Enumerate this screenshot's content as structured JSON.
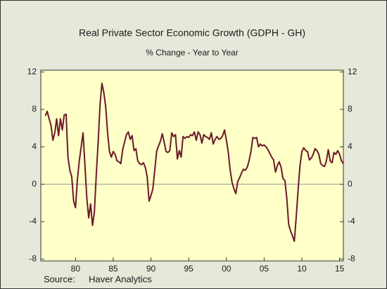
{
  "chart_data": {
    "type": "line",
    "title": "Real Private Sector Economic Growth (GDPH - GH)",
    "subtitle": "% Change - Year to Year",
    "source_label": "Source:",
    "source": "Haver Analytics",
    "x": [
      1976,
      1976.25,
      1976.5,
      1976.75,
      1977,
      1977.25,
      1977.5,
      1977.75,
      1978,
      1978.25,
      1978.5,
      1978.75,
      1979,
      1979.25,
      1979.5,
      1979.75,
      1980,
      1980.25,
      1980.5,
      1980.75,
      1981,
      1981.25,
      1981.5,
      1981.75,
      1982,
      1982.25,
      1982.5,
      1982.75,
      1983,
      1983.25,
      1983.5,
      1983.75,
      1984,
      1984.25,
      1984.5,
      1984.75,
      1985,
      1985.25,
      1985.5,
      1985.75,
      1986,
      1986.25,
      1986.5,
      1986.75,
      1987,
      1987.25,
      1987.5,
      1987.75,
      1988,
      1988.25,
      1988.5,
      1988.75,
      1989,
      1989.25,
      1989.5,
      1989.75,
      1990,
      1990.25,
      1990.5,
      1990.75,
      1991,
      1991.25,
      1991.5,
      1991.75,
      1992,
      1992.25,
      1992.5,
      1992.75,
      1993,
      1993.25,
      1993.5,
      1993.75,
      1994,
      1994.25,
      1994.5,
      1994.75,
      1995,
      1995.25,
      1995.5,
      1995.75,
      1996,
      1996.25,
      1996.5,
      1996.75,
      1997,
      1997.25,
      1997.5,
      1997.75,
      1998,
      1998.25,
      1998.5,
      1998.75,
      1999,
      1999.25,
      1999.5,
      1999.75,
      2000,
      2000.25,
      2000.5,
      2000.75,
      2001,
      2001.25,
      2001.5,
      2001.75,
      2002,
      2002.25,
      2002.5,
      2002.75,
      2003,
      2003.25,
      2003.5,
      2003.75,
      2004,
      2004.25,
      2004.5,
      2004.75,
      2005,
      2005.25,
      2005.5,
      2005.75,
      2006,
      2006.25,
      2006.5,
      2006.75,
      2007,
      2007.25,
      2007.5,
      2007.75,
      2008,
      2008.25,
      2008.5,
      2008.75,
      2009,
      2009.25,
      2009.5,
      2009.75,
      2010,
      2010.25,
      2010.5,
      2010.75,
      2011,
      2011.25,
      2011.5,
      2011.75,
      2012,
      2012.25,
      2012.5,
      2012.75,
      2013,
      2013.25,
      2013.5,
      2013.75,
      2014,
      2014.25,
      2014.5,
      2014.75,
      2015,
      2015.25,
      2015.5
    ],
    "series": [
      {
        "color": "#6b1a2a",
        "values": [
          7.3,
          7.8,
          7.0,
          6.3,
          4.7,
          5.5,
          7.0,
          5.2,
          7.0,
          5.8,
          7.4,
          7.5,
          2.9,
          1.5,
          0.8,
          -1.8,
          -2.5,
          0.5,
          2.5,
          4.0,
          5.5,
          2.0,
          -1.5,
          -3.6,
          -2.1,
          -4.4,
          -3.0,
          1.0,
          4.5,
          8.5,
          10.8,
          9.8,
          8.3,
          5.5,
          3.5,
          2.9,
          3.5,
          3.2,
          2.5,
          2.4,
          2.2,
          3.7,
          4.5,
          5.3,
          5.6,
          4.8,
          5.2,
          3.6,
          3.8,
          2.5,
          2.2,
          2.1,
          2.3,
          1.8,
          0.8,
          -1.8,
          -1.2,
          -0.5,
          1.5,
          3.5,
          4.1,
          4.6,
          5.4,
          4.5,
          3.5,
          3.4,
          3.6,
          5.5,
          5.1,
          5.3,
          2.7,
          3.6,
          2.9,
          5.1,
          4.9,
          5.1,
          5.0,
          5.3,
          5.2,
          5.6,
          4.7,
          5.6,
          5.3,
          4.4,
          5.3,
          5.1,
          5.0,
          4.8,
          5.5,
          4.3,
          4.8,
          5.1,
          4.8,
          4.9,
          5.2,
          5.8,
          4.7,
          3.4,
          1.5,
          0.2,
          -0.5,
          -1.0,
          0.3,
          0.7,
          1.2,
          1.6,
          1.5,
          1.8,
          2.5,
          3.5,
          5.0,
          4.9,
          5.0,
          4.0,
          4.3,
          4.1,
          4.2,
          4.0,
          3.7,
          3.3,
          2.9,
          2.6,
          1.3,
          2.0,
          2.4,
          1.8,
          0.6,
          0.4,
          -1.5,
          -4.3,
          -5.0,
          -5.5,
          -6.1,
          -3.5,
          -0.6,
          2.0,
          3.5,
          3.9,
          3.6,
          3.5,
          2.6,
          2.8,
          3.2,
          3.8,
          3.6,
          3.2,
          2.2,
          2.0,
          1.9,
          2.5,
          3.7,
          2.5,
          2.3,
          3.4,
          3.2,
          3.6,
          3.2,
          2.5,
          2.2
        ]
      }
    ],
    "xlim": [
      1975.4,
      2015.5
    ],
    "xticks": [
      {
        "value": 1980,
        "label": "80"
      },
      {
        "value": 1985,
        "label": "85"
      },
      {
        "value": 1990,
        "label": "90"
      },
      {
        "value": 1995,
        "label": "95"
      },
      {
        "value": 2000,
        "label": "00"
      },
      {
        "value": 2005,
        "label": "05"
      },
      {
        "value": 2010,
        "label": "10"
      },
      {
        "value": 2015,
        "label": "15"
      }
    ],
    "ylim": [
      -8.2,
      12.2
    ],
    "yticks": [
      12,
      8,
      4,
      0,
      -4,
      -8
    ],
    "y2lim": [
      -8.2,
      12.2
    ],
    "y2ticks": [
      12,
      8,
      4,
      0,
      -4,
      -8
    ],
    "plot_background": "#ffffc8"
  }
}
